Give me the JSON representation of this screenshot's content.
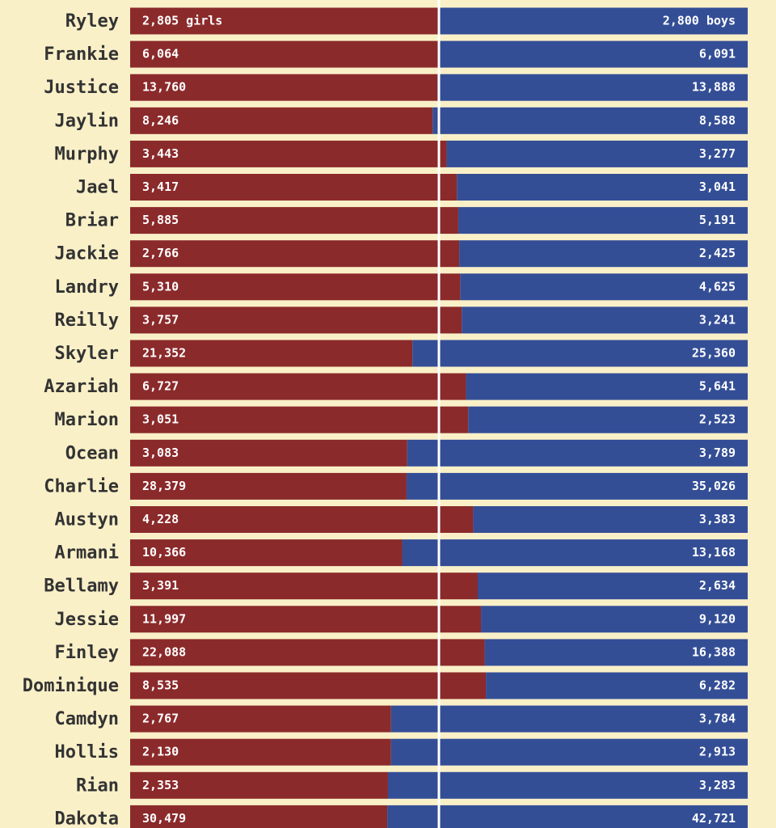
{
  "chart_data": {
    "type": "bar",
    "orientation": "horizontal",
    "stacking": "percent",
    "categories": [
      "Ryley",
      "Frankie",
      "Justice",
      "Jaylin",
      "Murphy",
      "Jael",
      "Briar",
      "Jackie",
      "Landry",
      "Reilly",
      "Skyler",
      "Azariah",
      "Marion",
      "Ocean",
      "Charlie",
      "Austyn",
      "Armani",
      "Bellamy",
      "Jessie",
      "Finley",
      "Dominique",
      "Camdyn",
      "Hollis",
      "Rian",
      "Dakota"
    ],
    "series": [
      {
        "color": "#8b2a2b",
        "values": [
          2805,
          6064,
          13760,
          8246,
          3443,
          3417,
          5885,
          2766,
          5310,
          3757,
          21352,
          6727,
          3051,
          3083,
          28379,
          4228,
          10366,
          3391,
          11997,
          22088,
          8535,
          2767,
          2130,
          2353,
          30479
        ],
        "value_labels": [
          "2,805 girls",
          "6,064",
          "13,760",
          "8,246",
          "3,443",
          "3,417",
          "5,885",
          "2,766",
          "5,310",
          "3,757",
          "21,352",
          "6,727",
          "3,051",
          "3,083",
          "28,379",
          "4,228",
          "10,366",
          "3,391",
          "11,997",
          "22,088",
          "8,535",
          "2,767",
          "2,130",
          "2,353",
          "30,479"
        ]
      },
      {
        "color": "#344e96",
        "values": [
          2800,
          6091,
          13888,
          8588,
          3277,
          3041,
          5191,
          2425,
          4625,
          3241,
          25360,
          5641,
          2523,
          3789,
          35026,
          3383,
          13168,
          2634,
          9120,
          16388,
          6282,
          3784,
          2913,
          3283,
          42721
        ],
        "value_labels": [
          "2,800 boys",
          "6,091",
          "13,888",
          "8,588",
          "3,277",
          "3,041",
          "5,191",
          "2,425",
          "4,625",
          "3,241",
          "25,360",
          "5,641",
          "2,523",
          "3,789",
          "35,026",
          "3,383",
          "13,168",
          "2,634",
          "9,120",
          "16,388",
          "6,282",
          "3,784",
          "2,913",
          "3,283",
          "42,721"
        ]
      }
    ]
  }
}
